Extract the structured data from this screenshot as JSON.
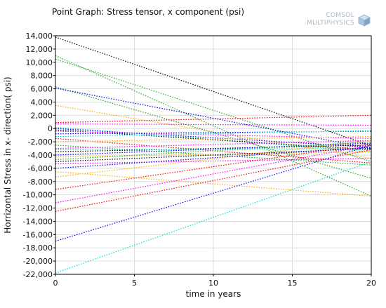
{
  "header": {
    "title": "Point Graph: Stress tensor, x component (psi)",
    "logo_line1": "COMSOL",
    "logo_line2": "MULTIPHYSICS"
  },
  "chart_data": {
    "type": "line",
    "title": "Point Graph: Stress tensor, x component (psi)",
    "xlabel": "time in years",
    "ylabel": "Horrizontal Stress in x- direction( psi)",
    "xlim": [
      0,
      20
    ],
    "ylim": [
      -22000,
      14000
    ],
    "x_ticks": [
      0,
      5,
      10,
      15,
      20
    ],
    "x_tick_labels": [
      "0",
      "5",
      "10",
      "15",
      "20"
    ],
    "y_ticks": [
      14000,
      12000,
      10000,
      8000,
      6000,
      4000,
      2000,
      0,
      -2000,
      -4000,
      -6000,
      -8000,
      -10000,
      -12000,
      -14000,
      -16000,
      -18000,
      -20000,
      -22000
    ],
    "y_tick_labels": [
      "14,000",
      "12,000",
      "10,000",
      "8,000",
      "6,000",
      "4,000",
      "2,000",
      "0",
      "-2,000",
      "-4,000",
      "-6,000",
      "-8,000",
      "-10,000",
      "-12,000",
      "-14,000",
      "-16,000",
      "-18,000",
      "-20,000",
      "-22,000"
    ],
    "grid": true,
    "line_style": "dotted",
    "x": [
      0,
      20
    ],
    "series": [
      {
        "color": "#000000",
        "values": [
          13800,
          -2600
        ]
      },
      {
        "color": "#22aa22",
        "values": [
          11000,
          -10200
        ]
      },
      {
        "color": "#22aa22",
        "values": [
          10500,
          -5000
        ]
      },
      {
        "color": "#22aa22",
        "values": [
          6300,
          -7500
        ]
      },
      {
        "color": "#0000ff",
        "values": [
          6100,
          -3000
        ]
      },
      {
        "color": "#ffaa00",
        "values": [
          3500,
          -4500
        ]
      },
      {
        "color": "#ff0000",
        "values": [
          900,
          2000
        ]
      },
      {
        "color": "#ff00ff",
        "values": [
          700,
          500
        ]
      },
      {
        "color": "#00dddd",
        "values": [
          200,
          -3500
        ]
      },
      {
        "color": "#0000ff",
        "values": [
          0,
          -2800
        ]
      },
      {
        "color": "#000000",
        "values": [
          -200,
          -3200
        ]
      },
      {
        "color": "#ff00ff",
        "values": [
          -400,
          -1500
        ]
      },
      {
        "color": "#0000ff",
        "values": [
          -800,
          -400
        ]
      },
      {
        "color": "#00dddd",
        "values": [
          -1200,
          -300
        ]
      },
      {
        "color": "#ff0000",
        "values": [
          -1500,
          -5200
        ]
      },
      {
        "color": "#ffaa00",
        "values": [
          -2000,
          -1200
        ]
      },
      {
        "color": "#22aa22",
        "values": [
          -2500,
          -5500
        ]
      },
      {
        "color": "#ff00ff",
        "values": [
          -3000,
          -1800
        ]
      },
      {
        "color": "#000000",
        "values": [
          -3500,
          -2500
        ]
      },
      {
        "color": "#00dddd",
        "values": [
          -3200,
          -3000
        ]
      },
      {
        "color": "#0000ff",
        "values": [
          -4000,
          -2200
        ]
      },
      {
        "color": "#ffaa00",
        "values": [
          -4300,
          -3500
        ]
      },
      {
        "color": "#22aa22",
        "values": [
          -4700,
          -2000
        ]
      },
      {
        "color": "#000000",
        "values": [
          -5000,
          -3000
        ]
      },
      {
        "color": "#ff00ff",
        "values": [
          -5300,
          -4500
        ]
      },
      {
        "color": "#0000ff",
        "values": [
          -6000,
          -2800
        ]
      },
      {
        "color": "#ffaa00",
        "values": [
          -6500,
          -10200
        ]
      },
      {
        "color": "#ffaa00",
        "values": [
          -7300,
          -1800
        ]
      },
      {
        "color": "#ff0000",
        "values": [
          -9200,
          -2300
        ]
      },
      {
        "color": "#ff00ff",
        "values": [
          -11200,
          -2500
        ]
      },
      {
        "color": "#ff0000",
        "values": [
          -12500,
          -3200
        ]
      },
      {
        "color": "#0000ff",
        "values": [
          -17000,
          -2500
        ]
      },
      {
        "color": "#00dddd",
        "values": [
          -21800,
          -5000
        ]
      }
    ]
  }
}
